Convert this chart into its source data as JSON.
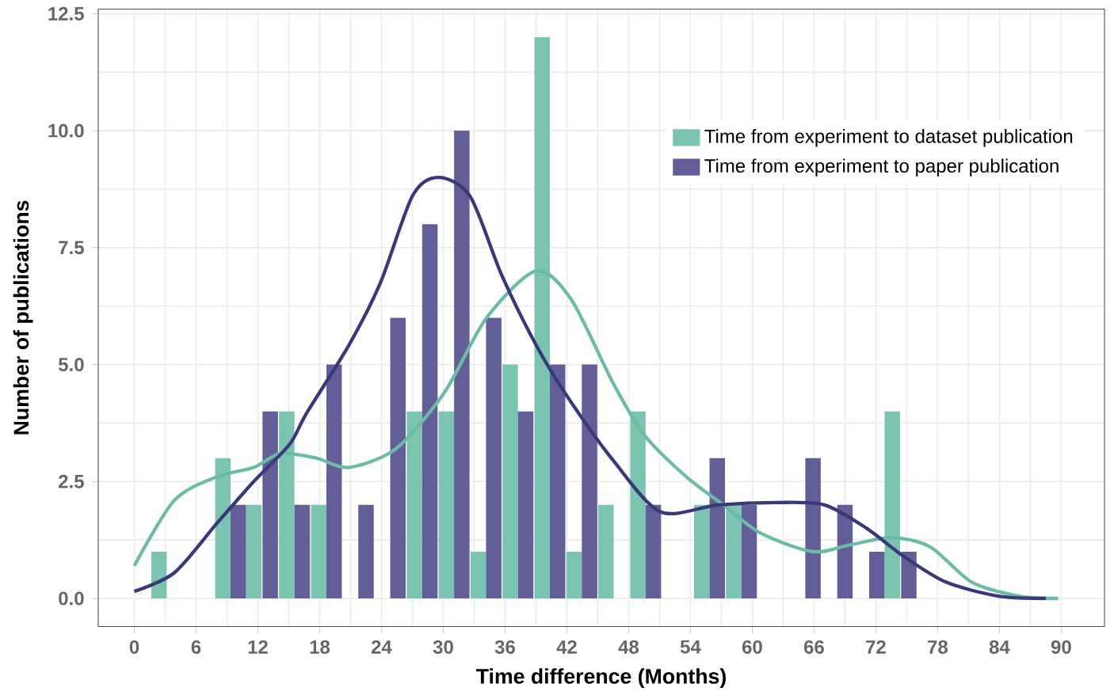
{
  "chart_data": {
    "type": "bar",
    "xlabel": "Time difference (Months)",
    "ylabel": "Number of publications",
    "xlim": [
      -3.5,
      94.2
    ],
    "ylim": [
      -0.6,
      12.6
    ],
    "xticks": [
      0,
      6,
      12,
      18,
      24,
      30,
      36,
      42,
      48,
      54,
      60,
      66,
      72,
      78,
      84,
      90
    ],
    "yticks": [
      {
        "value": 0,
        "label": "0.0"
      },
      {
        "value": 2.5,
        "label": "2.5"
      },
      {
        "value": 5,
        "label": "5.0"
      },
      {
        "value": 7.5,
        "label": "7.5"
      },
      {
        "value": 10,
        "label": "10.0"
      },
      {
        "value": 12.5,
        "label": "12.5"
      }
    ],
    "grid": true,
    "legend": "top right",
    "series": [
      {
        "name": "Time from experiment to dataset publication",
        "color": "#7cc4b2",
        "x": [
          2.4,
          8.6,
          11.6,
          14.8,
          17.9,
          27.2,
          30.3,
          33.4,
          36.5,
          39.6,
          42.7,
          45.8,
          48.9,
          55.1,
          58.2,
          73.6
        ],
        "values": [
          1,
          3,
          2,
          4,
          2,
          4,
          4,
          1,
          5,
          12,
          1,
          2,
          4,
          2,
          2,
          4
        ]
      },
      {
        "name": "Time from experiment to paper publication",
        "color": "#625f98",
        "x": [
          10.1,
          13.2,
          16.3,
          19.4,
          22.5,
          25.6,
          28.7,
          31.8,
          34.9,
          38.0,
          41.1,
          44.2,
          50.4,
          56.6,
          59.7,
          65.9,
          69.0,
          72.1,
          75.2
        ],
        "values": [
          2,
          4,
          2,
          5,
          2,
          6,
          8,
          10,
          6,
          4,
          5,
          5,
          2,
          3,
          2,
          3,
          2,
          1,
          1
        ]
      },
      {
        "type": "line",
        "color": "#6bbba6",
        "x": [
          0,
          3.9,
          8,
          11.6,
          14.2,
          17.7,
          20.8,
          25.4,
          30.1,
          34.2,
          39,
          42.4,
          46.5,
          49.5,
          53.6,
          57.2,
          60.8,
          65.9,
          69.6,
          73.6,
          77.3,
          81.3,
          85.9,
          89.7
        ],
        "values": [
          0.7,
          2.1,
          2.6,
          2.8,
          3.1,
          3.0,
          2.8,
          3.2,
          4.4,
          6.0,
          7.0,
          6.4,
          4.6,
          3.5,
          2.6,
          2.0,
          1.4,
          1.0,
          1.15,
          1.3,
          1.1,
          0.35,
          0.05,
          0
        ]
      },
      {
        "type": "line",
        "color": "#39397a",
        "x": [
          0,
          3.9,
          8,
          11.6,
          15.1,
          16.7,
          20.8,
          23.9,
          27,
          29.5,
          32.6,
          35.7,
          39.3,
          42.4,
          46.5,
          51.1,
          56.7,
          62.3,
          67,
          71.1,
          74.7,
          78.8,
          83.9,
          88.5
        ],
        "values": [
          0.15,
          0.55,
          1.6,
          2.5,
          3.3,
          3.95,
          5.4,
          6.75,
          8.6,
          9.0,
          8.6,
          6.9,
          5.3,
          4.2,
          2.95,
          1.85,
          2.0,
          2.05,
          2.0,
          1.5,
          0.9,
          0.35,
          0.05,
          0
        ]
      }
    ]
  }
}
